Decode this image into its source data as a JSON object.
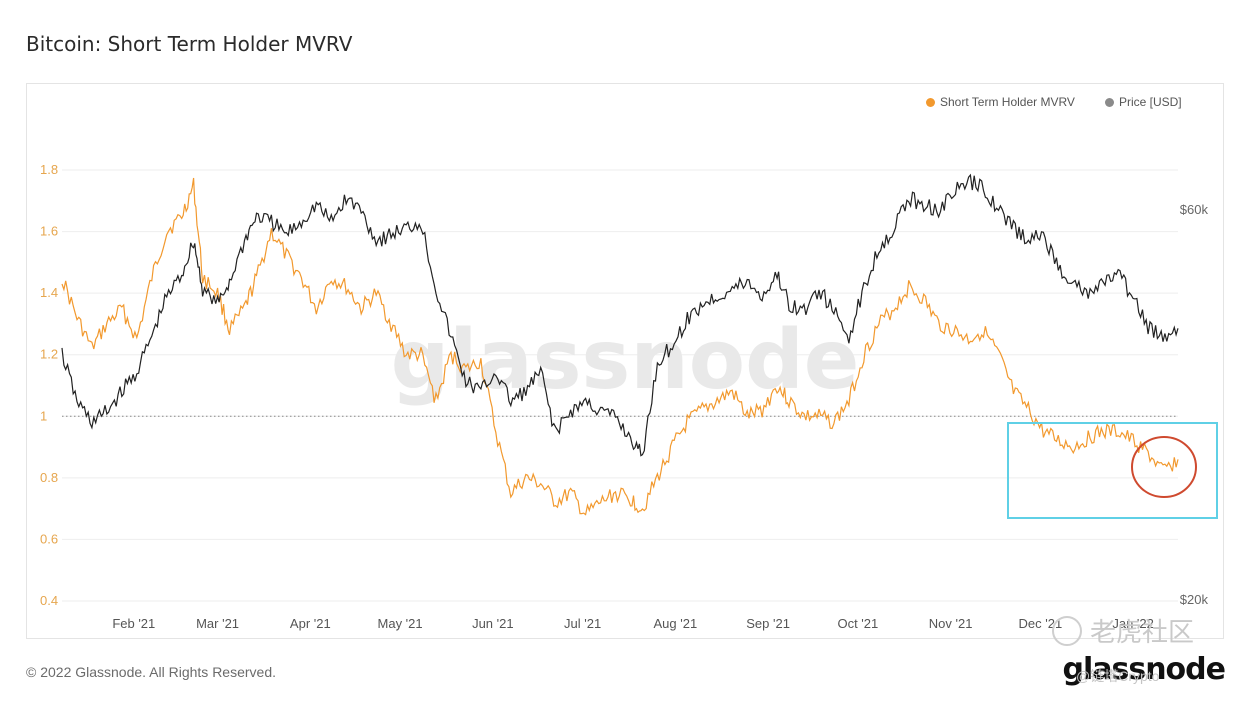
{
  "header": {
    "title": "Bitcoin: Short Term Holder MVRV"
  },
  "footer": {
    "copyright": "© 2022 Glassnode. All Rights Reserved.",
    "logo": "glassnode"
  },
  "overlay": {
    "watermark_cn": "老虎社区",
    "watermark_id": "@链塔Crypto"
  },
  "legend": {
    "items": [
      {
        "label": "Short Term Holder MVRV",
        "color": "#f2992e"
      },
      {
        "label": "Price [USD]",
        "color": "#8a8a8a"
      }
    ]
  },
  "annotations": {
    "box_color": "#5fd0e6",
    "circle_color": "#cf4a2f"
  },
  "chart_data": {
    "type": "line",
    "title": "Bitcoin: Short Term Holder MVRV",
    "watermark": "glassnode",
    "x_ticks": [
      "Feb '21",
      "Mar '21",
      "Apr '21",
      "May '21",
      "Jun '21",
      "Jul '21",
      "Aug '21",
      "Sep '21",
      "Oct '21",
      "Nov '21",
      "Dec '21",
      "Jan '22"
    ],
    "left_axis": {
      "ticks": [
        "1.8",
        "1.6",
        "1.4",
        "1.2",
        "1",
        "0.8",
        "0.6",
        "0.4"
      ],
      "ylim": [
        0.4,
        1.85
      ]
    },
    "right_axis": {
      "ticks": [
        "$60k",
        "$20k"
      ],
      "scale": "log"
    },
    "reference_line": {
      "y": 1,
      "style": "dotted"
    },
    "series": [
      {
        "name": "Short Term Holder MVRV",
        "axis": "left",
        "color": "#f2992e",
        "x": [
          "2021-01-08",
          "2021-01-13",
          "2021-01-18",
          "2021-01-23",
          "2021-01-28",
          "2021-02-02",
          "2021-02-07",
          "2021-02-12",
          "2021-02-17",
          "2021-02-21",
          "2021-02-24",
          "2021-03-01",
          "2021-03-05",
          "2021-03-10",
          "2021-03-14",
          "2021-03-19",
          "2021-03-24",
          "2021-03-29",
          "2021-04-03",
          "2021-04-08",
          "2021-04-13",
          "2021-04-18",
          "2021-04-23",
          "2021-04-28",
          "2021-05-03",
          "2021-05-08",
          "2021-05-13",
          "2021-05-18",
          "2021-05-23",
          "2021-05-28",
          "2021-06-02",
          "2021-06-07",
          "2021-06-12",
          "2021-06-17",
          "2021-06-22",
          "2021-06-27",
          "2021-07-02",
          "2021-07-07",
          "2021-07-12",
          "2021-07-17",
          "2021-07-21",
          "2021-07-26",
          "2021-07-31",
          "2021-08-05",
          "2021-08-10",
          "2021-08-15",
          "2021-08-20",
          "2021-08-25",
          "2021-08-30",
          "2021-09-04",
          "2021-09-08",
          "2021-09-13",
          "2021-09-18",
          "2021-09-23",
          "2021-09-28",
          "2021-10-03",
          "2021-10-08",
          "2021-10-13",
          "2021-10-18",
          "2021-10-23",
          "2021-10-28",
          "2021-11-02",
          "2021-11-07",
          "2021-11-12",
          "2021-11-17",
          "2021-11-22",
          "2021-11-27",
          "2021-12-02",
          "2021-12-07",
          "2021-12-12",
          "2021-12-17",
          "2021-12-22",
          "2021-12-27",
          "2022-01-01",
          "2022-01-06",
          "2022-01-11",
          "2022-01-16"
        ],
        "values": [
          1.45,
          1.32,
          1.22,
          1.3,
          1.35,
          1.25,
          1.45,
          1.6,
          1.65,
          1.75,
          1.45,
          1.4,
          1.28,
          1.35,
          1.45,
          1.6,
          1.52,
          1.45,
          1.35,
          1.45,
          1.42,
          1.35,
          1.4,
          1.3,
          1.2,
          1.2,
          1.05,
          1.2,
          1.15,
          1.18,
          0.95,
          0.75,
          0.8,
          0.78,
          0.72,
          0.75,
          0.68,
          0.72,
          0.75,
          0.73,
          0.7,
          0.8,
          0.9,
          0.98,
          1.02,
          1.05,
          1.08,
          1.0,
          1.02,
          1.1,
          1.05,
          1.0,
          1.0,
          0.98,
          1.05,
          1.2,
          1.3,
          1.35,
          1.42,
          1.38,
          1.3,
          1.28,
          1.25,
          1.28,
          1.2,
          1.08,
          1.02,
          0.95,
          0.92,
          0.9,
          0.93,
          0.95,
          0.95,
          0.92,
          0.88,
          0.82,
          0.86
        ]
      },
      {
        "name": "Price [USD]",
        "axis": "right",
        "color": "#222222",
        "x": [
          "2021-01-08",
          "2021-01-13",
          "2021-01-18",
          "2021-01-23",
          "2021-01-28",
          "2021-02-02",
          "2021-02-07",
          "2021-02-12",
          "2021-02-17",
          "2021-02-21",
          "2021-02-24",
          "2021-03-01",
          "2021-03-05",
          "2021-03-10",
          "2021-03-14",
          "2021-03-19",
          "2021-03-24",
          "2021-03-29",
          "2021-04-03",
          "2021-04-08",
          "2021-04-13",
          "2021-04-18",
          "2021-04-23",
          "2021-04-28",
          "2021-05-03",
          "2021-05-08",
          "2021-05-13",
          "2021-05-18",
          "2021-05-23",
          "2021-05-28",
          "2021-06-02",
          "2021-06-07",
          "2021-06-12",
          "2021-06-17",
          "2021-06-22",
          "2021-06-27",
          "2021-07-02",
          "2021-07-07",
          "2021-07-12",
          "2021-07-17",
          "2021-07-21",
          "2021-07-26",
          "2021-07-31",
          "2021-08-05",
          "2021-08-10",
          "2021-08-15",
          "2021-08-20",
          "2021-08-25",
          "2021-08-30",
          "2021-09-04",
          "2021-09-08",
          "2021-09-13",
          "2021-09-18",
          "2021-09-23",
          "2021-09-28",
          "2021-10-03",
          "2021-10-08",
          "2021-10-13",
          "2021-10-18",
          "2021-10-23",
          "2021-10-28",
          "2021-11-02",
          "2021-11-07",
          "2021-11-12",
          "2021-11-17",
          "2021-11-22",
          "2021-11-27",
          "2021-12-02",
          "2021-12-07",
          "2021-12-12",
          "2021-12-17",
          "2021-12-22",
          "2021-12-27",
          "2022-01-01",
          "2022-01-06",
          "2022-01-11",
          "2022-01-16"
        ],
        "values": [
          40000,
          35000,
          33000,
          34000,
          36000,
          38000,
          42000,
          47000,
          50000,
          55000,
          48000,
          46000,
          49000,
          55000,
          59000,
          58000,
          56000,
          58000,
          61000,
          58000,
          62000,
          60000,
          55000,
          56000,
          57000,
          58000,
          48000,
          42000,
          37000,
          36000,
          38000,
          35000,
          36000,
          38000,
          32000,
          34000,
          35000,
          34000,
          33500,
          31500,
          30000,
          39000,
          41000,
          44000,
          46000,
          47000,
          48000,
          49000,
          47000,
          50000,
          46000,
          45000,
          48000,
          45000,
          42000,
          48000,
          54000,
          57000,
          62000,
          61000,
          60000,
          63000,
          65000,
          64000,
          60000,
          57000,
          55000,
          56000,
          51000,
          49000,
          47000,
          49000,
          50000,
          47000,
          43000,
          42000,
          43000
        ]
      }
    ]
  }
}
